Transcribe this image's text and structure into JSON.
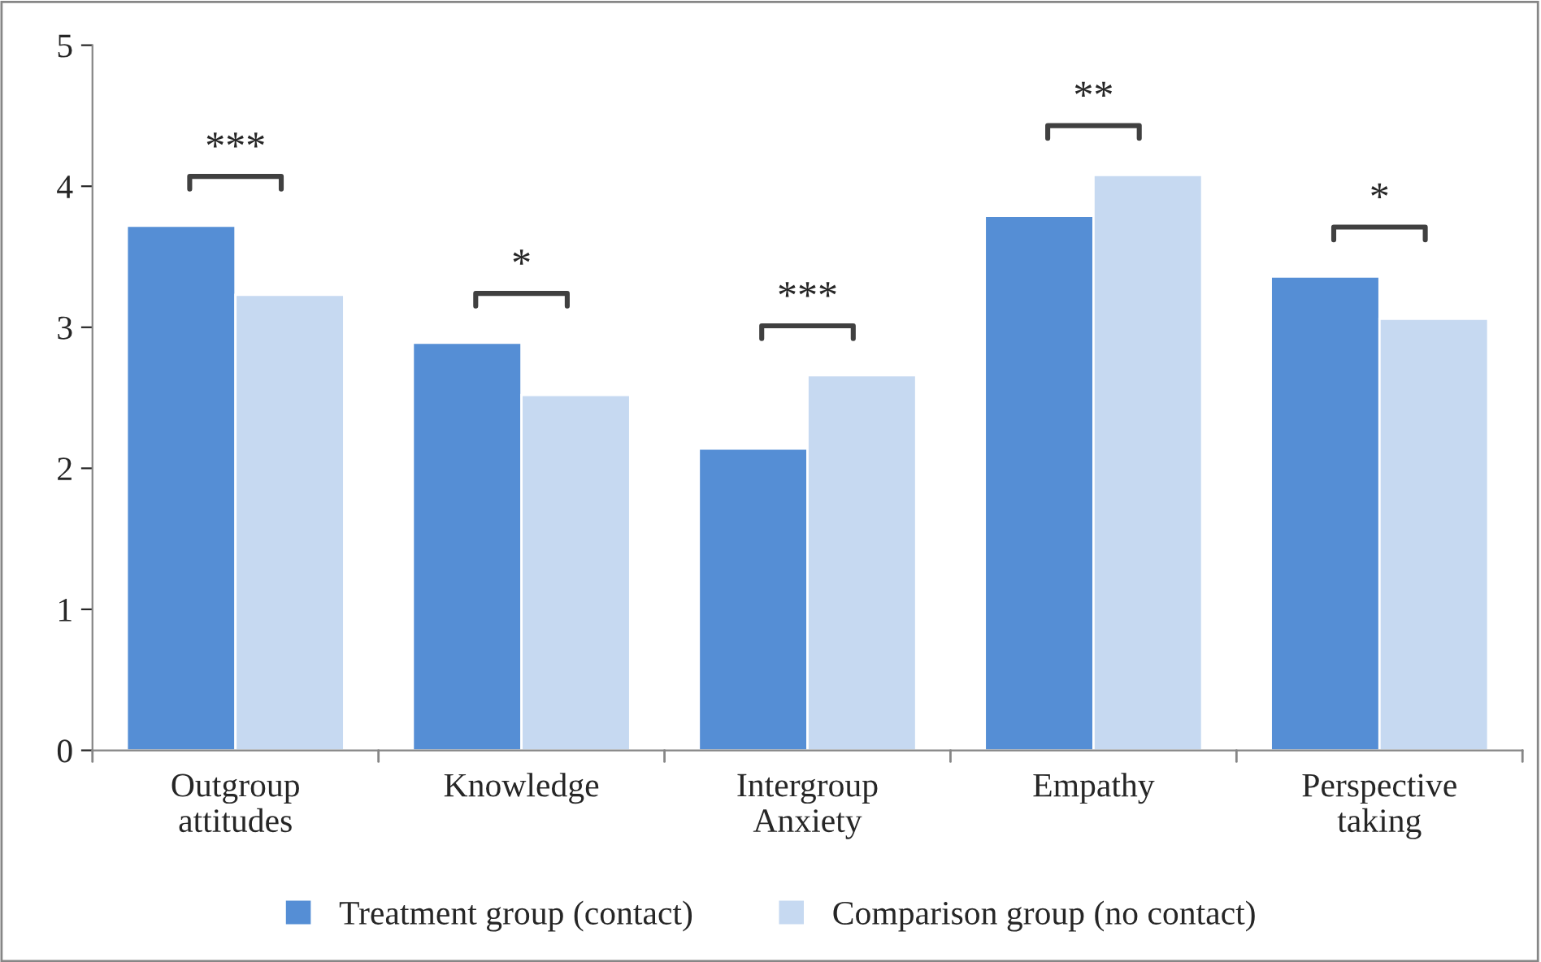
{
  "chart_data": {
    "type": "bar",
    "categories": [
      "Outgroup\nattitudes",
      "Knowledge",
      "Intergroup\nAnxiety",
      "Empathy",
      "Perspective\ntaking"
    ],
    "series": [
      {
        "name": "Treatment group (contact)",
        "color": "#558ed5",
        "values": [
          3.72,
          2.89,
          2.14,
          3.79,
          3.36
        ]
      },
      {
        "name": "Comparison group (no contact)",
        "color": "#c6d9f1",
        "values": [
          3.23,
          2.52,
          2.66,
          4.08,
          3.06
        ]
      }
    ],
    "ylim": [
      0,
      5
    ],
    "yticks": [
      0,
      1,
      2,
      3,
      4,
      5
    ],
    "grid": false,
    "legend": "bottom",
    "annotations": [
      "***",
      "*",
      "***",
      "**",
      "*"
    ]
  }
}
